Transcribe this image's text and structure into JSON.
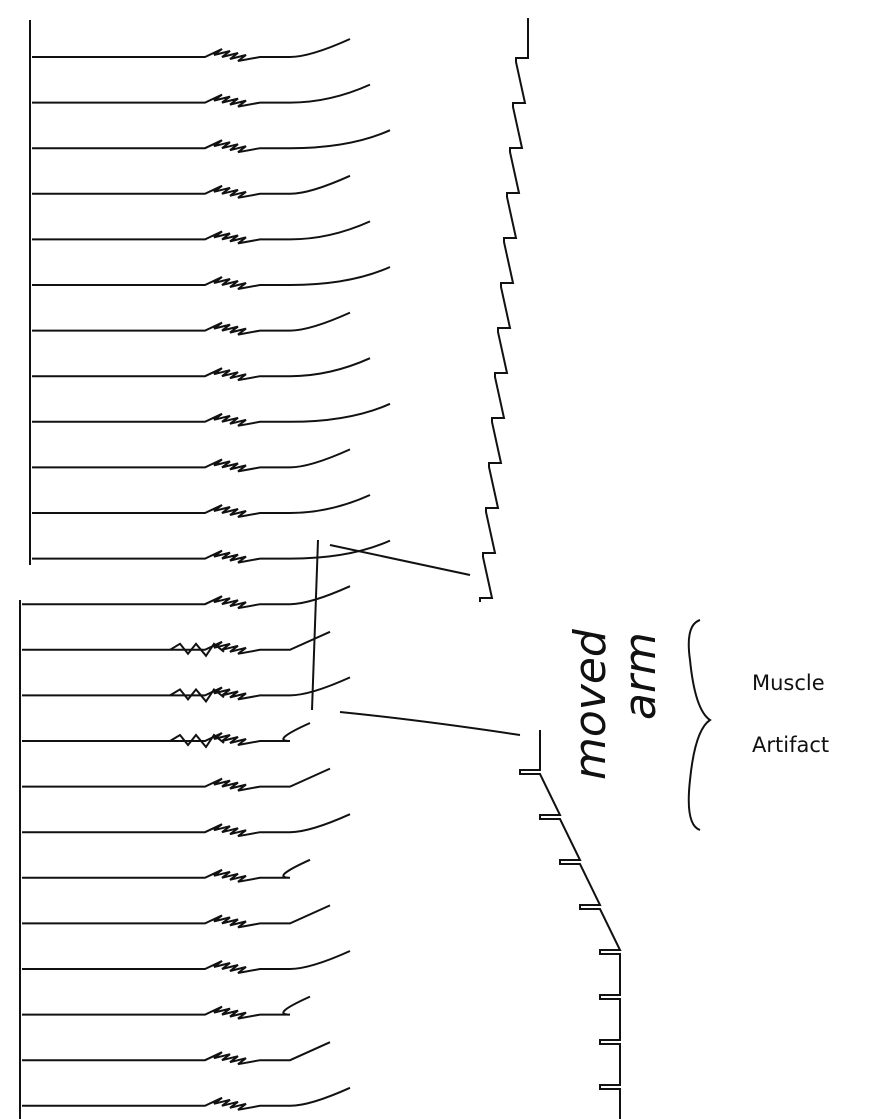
{
  "annotations": {
    "handwritten": [
      "moved",
      "arm"
    ],
    "label": [
      "Muscle",
      "Artifact"
    ]
  }
}
